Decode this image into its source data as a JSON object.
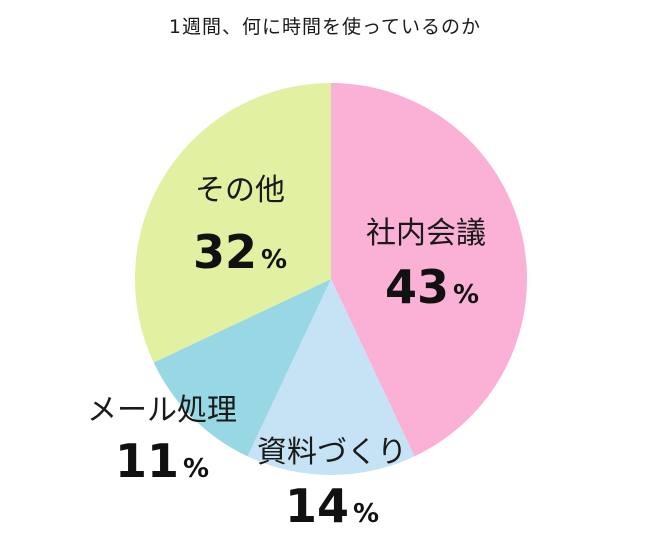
{
  "chart_data": {
    "type": "pie",
    "title": "1週間、何に時間を使っているのか",
    "start_angle_deg": 0,
    "direction": "clockwise",
    "unit": "%",
    "slices": [
      {
        "label": "社内会議",
        "value": 43,
        "color": "#fbb0d6"
      },
      {
        "label": "資料づくり",
        "value": 14,
        "color": "#c6e2f5"
      },
      {
        "label": "メール処理",
        "value": 11,
        "color": "#97d8e4"
      },
      {
        "label": "その他",
        "value": 32,
        "color": "#e2f0a2"
      }
    ]
  }
}
